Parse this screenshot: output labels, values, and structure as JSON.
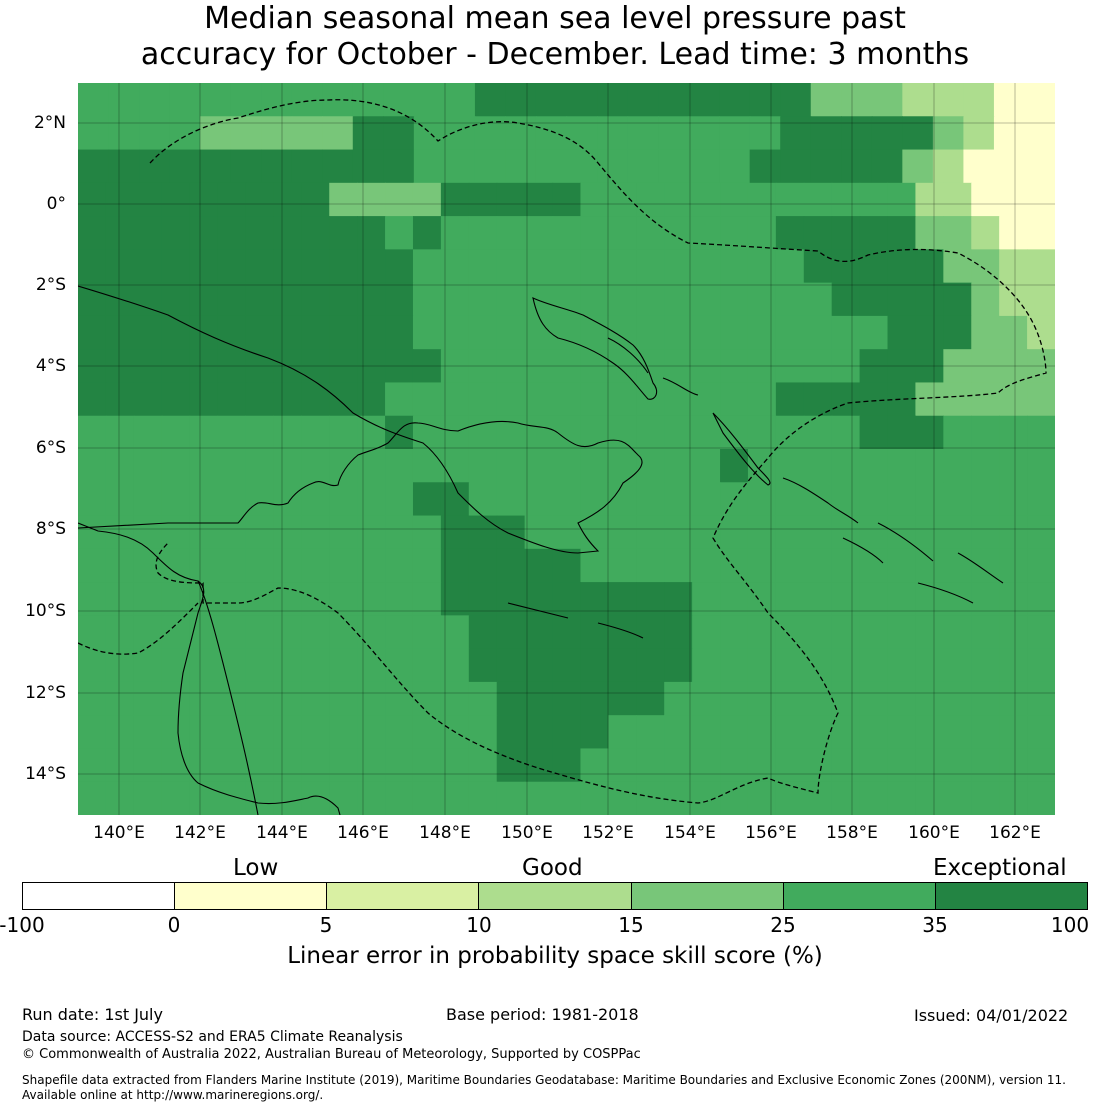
{
  "title": {
    "line1": "Median seasonal mean sea level pressure past",
    "line2": "accuracy for October - December. Lead time: 3 months"
  },
  "map": {
    "lat_labels": [
      "2°N",
      "0°",
      "2°S",
      "4°S",
      "6°S",
      "8°S",
      "10°S",
      "12°S",
      "14°S"
    ],
    "lon_labels": [
      "140°E",
      "142°E",
      "144°E",
      "146°E",
      "148°E",
      "150°E",
      "152°E",
      "154°E",
      "156°E",
      "158°E",
      "160°E",
      "162°E"
    ],
    "grid": [
      "33333333333334444444444455566677",
      "33335555544333333333333444445677",
      "44444444444333333333334444456777",
      "44444444455554444433333333333366777",
      "44444444444343333333333334444455677",
      "44444444444433333333333333444445566",
      "44444444444433333333333333344444566",
      "44444444444433333333333333333444556",
      "44444444444443333333333333334445555",
      "44444444444333333333333334444455555",
      "33333333333433333333333333334443333",
      "33333333333333333333333433333333333",
      "33333333333344333333333333333333333",
      "33333333333334443333333333333333333",
      "33333333333334444433333333333333333",
      "33333333333334444444443333333333333",
      "33333333333333444444443333333333333",
      "33333333333333444444443333333333333",
      "33333333333333344444433333333333333",
      "33333333333333344443333333333333333",
      "33333333333333344433333333333333333",
      "33333333333333333333333333333333333"
    ],
    "colors": {
      "c0": "#ffffff",
      "c1": "#ffffcc",
      "c2": "#d9f0a3",
      "c3": "#41ab5d",
      "c4": "#238443",
      "c5": "#78c679",
      "c6": "#addd8e",
      "c7": "#ffffcc"
    }
  },
  "colorbar": {
    "categories": [
      "Low",
      "Good",
      "Exceptional"
    ],
    "ticks": [
      "-100",
      "0",
      "5",
      "10",
      "15",
      "25",
      "35",
      "100"
    ],
    "colors": [
      "#ffffff",
      "#ffffcc",
      "#d9f0a3",
      "#addd8e",
      "#78c679",
      "#41ab5d",
      "#238443"
    ],
    "label": "Linear error in probability space skill score (%)"
  },
  "footer": {
    "run_date": "Run date: 1st July",
    "base_period": "Base period: 1981-2018",
    "issued": "Issued: 04/01/2022",
    "data_source": "Data source: ACCESS-S2 and ERA5 Climate Reanalysis",
    "copyright": "© Commonwealth of Australia 2022, Australian Bureau of Meteorology, Supported by COSPPac",
    "shapefile": "Shapefile data extracted from Flanders Marine Institute (2019), Maritime Boundaries Geodatabase: Maritime Boundaries and Exclusive Economic Zones (200NM), version 11.",
    "available": "Available online at http://www.marineregions.org/."
  }
}
